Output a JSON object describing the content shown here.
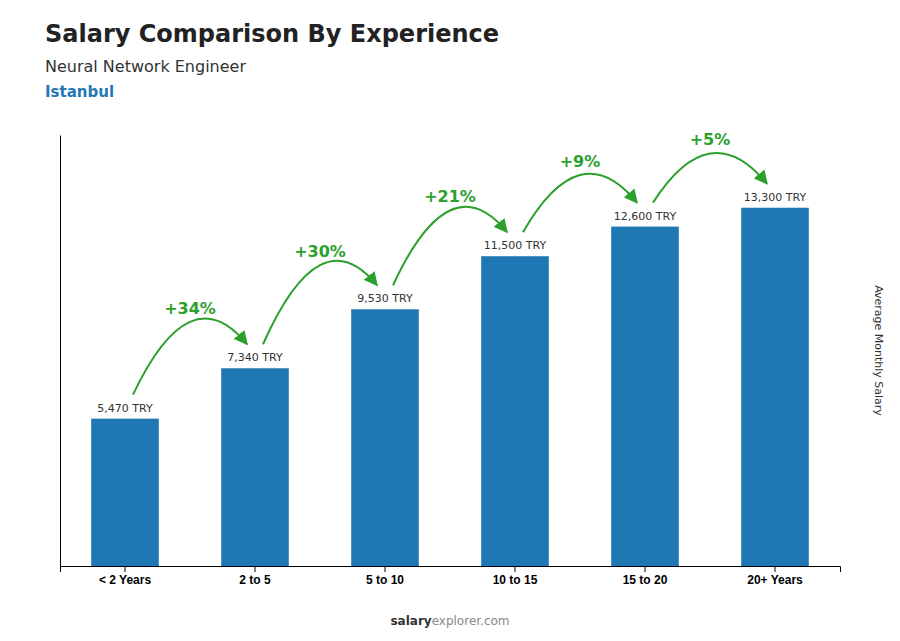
{
  "chart_data": {
    "type": "bar",
    "title": "Salary Comparison By Experience",
    "subtitle": "Neural Network Engineer",
    "city": "Istanbul",
    "ylabel": "Average Monthly Salary",
    "categories": [
      "< 2 Years",
      "2 to 5",
      "5 to 10",
      "10 to 15",
      "15 to 20",
      "20+ Years"
    ],
    "values": [
      5470,
      7340,
      9530,
      11500,
      12600,
      13300
    ],
    "value_labels": [
      "5,470 TRY",
      "7,340 TRY",
      "9,530 TRY",
      "11,500 TRY",
      "12,600 TRY",
      "13,300 TRY"
    ],
    "data_labels": true,
    "annotations": [
      "+34%",
      "+30%",
      "+21%",
      "+9%",
      "+5%"
    ],
    "watermark": [
      "salary",
      "explorer.com"
    ],
    "ylim": [
      0,
      16000
    ],
    "tick_labels": "x",
    "grid": false
  }
}
